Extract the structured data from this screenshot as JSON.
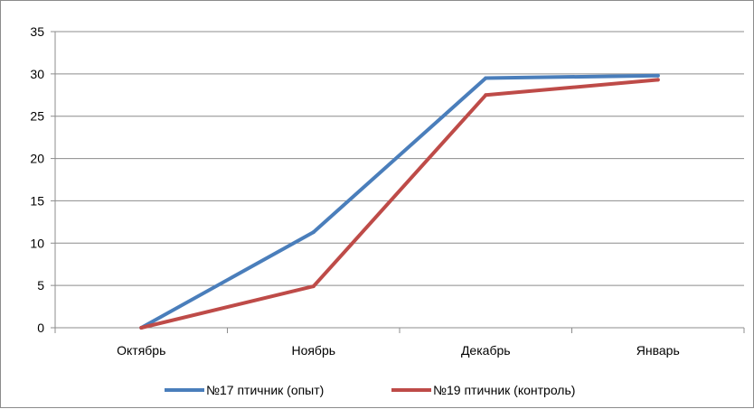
{
  "chart_data": {
    "type": "line",
    "title": "",
    "xlabel": "",
    "ylabel": "",
    "categories": [
      "Октябрь",
      "Ноябрь",
      "Декабрь",
      "Январь"
    ],
    "ylim": [
      0,
      35
    ],
    "yticks": [
      0,
      5,
      10,
      15,
      20,
      25,
      30,
      35
    ],
    "grid": true,
    "legend_position": "bottom",
    "series": [
      {
        "name": "№17 птичник (опыт)",
        "color": "#4a7ebb",
        "values": [
          0,
          11.3,
          29.5,
          29.8
        ]
      },
      {
        "name": "№19 птичник  (контроль)",
        "color": "#be4b48",
        "values": [
          0,
          4.9,
          27.5,
          29.3
        ]
      }
    ]
  }
}
